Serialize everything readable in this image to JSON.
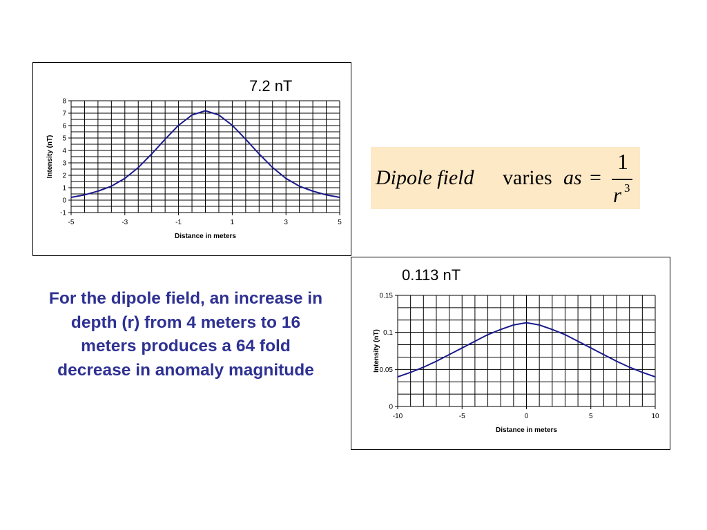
{
  "caption": "For the dipole field, an increase in depth (r) from 4 meters to 16 meters produces a 64 fold decrease in anomaly magnitude",
  "formula": {
    "lhs_italic": "Dipole field",
    "middle": "varies",
    "as_italic": "as",
    "equals": "=",
    "numerator": "1",
    "denominator": "r",
    "exponent": "3"
  },
  "chart_data": [
    {
      "type": "line",
      "annotation": "7.2 nT",
      "xlabel": "Distance in meters",
      "ylabel": "Intensity (nT)",
      "xlim": [
        -5,
        5
      ],
      "ylim": [
        -1,
        8
      ],
      "x_ticks": [
        "-5",
        "-3",
        "-1",
        "1",
        "3",
        "5"
      ],
      "y_ticks": [
        "8",
        "7",
        "6",
        "5",
        "4",
        "3",
        "2",
        "1",
        "0",
        "-1"
      ],
      "grid": true,
      "line_color": "#1a1a8c",
      "x": [
        -5,
        -4.5,
        -4,
        -3.5,
        -3,
        -2.5,
        -2,
        -1.5,
        -1,
        -0.5,
        0,
        0.5,
        1,
        1.5,
        2,
        2.5,
        3,
        3.5,
        4,
        4.5,
        5
      ],
      "values": [
        0.22,
        0.42,
        0.72,
        1.12,
        1.75,
        2.62,
        3.72,
        4.9,
        6.02,
        6.85,
        7.2,
        6.85,
        6.02,
        4.9,
        3.72,
        2.62,
        1.75,
        1.12,
        0.72,
        0.42,
        0.22
      ]
    },
    {
      "type": "line",
      "annotation": "0.113 nT",
      "xlabel": "Distance in meters",
      "ylabel": "Intensity (nT)",
      "xlim": [
        -10,
        10
      ],
      "ylim": [
        0,
        0.15
      ],
      "x_ticks": [
        "-10",
        "-5",
        "0",
        "5",
        "10"
      ],
      "y_ticks": [
        "0.15",
        "0.1",
        "0.05",
        "0"
      ],
      "grid": true,
      "line_color": "#1a1a8c",
      "x": [
        -10,
        -9,
        -8,
        -7,
        -6,
        -5,
        -4,
        -3,
        -2,
        -1,
        0,
        1,
        2,
        3,
        4,
        5,
        6,
        7,
        8,
        9,
        10
      ],
      "values": [
        0.04,
        0.046,
        0.053,
        0.061,
        0.07,
        0.079,
        0.088,
        0.097,
        0.104,
        0.11,
        0.113,
        0.11,
        0.104,
        0.097,
        0.088,
        0.079,
        0.07,
        0.061,
        0.053,
        0.046,
        0.04
      ]
    }
  ]
}
